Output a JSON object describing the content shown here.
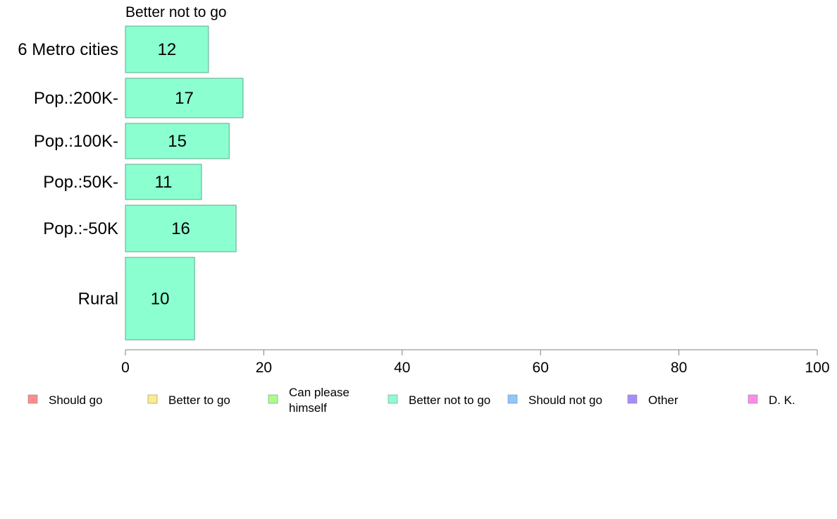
{
  "chart_data": {
    "type": "bar",
    "orientation": "horizontal",
    "title": "Better not to go",
    "categories": [
      "6 Metro cities",
      "Pop.:200K-",
      "Pop.:100K-",
      "Pop.:50K-",
      "Pop.:-50K",
      "Rural"
    ],
    "series": [
      {
        "name": "Better not to go",
        "values": [
          12,
          17,
          15,
          11,
          16,
          10
        ]
      }
    ],
    "xlim": [
      0,
      100
    ],
    "xticks": [
      "0",
      "20",
      "40",
      "60",
      "80",
      "100"
    ],
    "bar_color": "#8CFFD1",
    "bar_stroke": "#5FA88C",
    "axis_color": "#808080",
    "legend": {
      "position": "bottom",
      "items": [
        {
          "label": "Should go",
          "color": "#FF8C8C"
        },
        {
          "label": "Better to go",
          "color": "#FFEB8C"
        },
        {
          "label": "Can please himself",
          "lines": [
            "Can please",
            "himself"
          ],
          "color": "#A8FF8C"
        },
        {
          "label": "Better not to go",
          "color": "#8CFFD1"
        },
        {
          "label": "Should not go",
          "color": "#8CC8FF"
        },
        {
          "label": "Other",
          "color": "#A88CFF"
        },
        {
          "label": "D. K.",
          "color": "#FF8CE8"
        }
      ]
    }
  }
}
